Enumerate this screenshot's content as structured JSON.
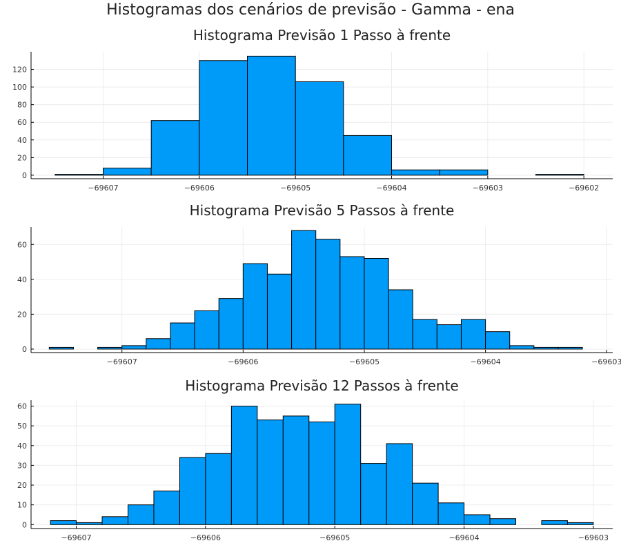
{
  "suptitle": "Histogramas dos cenários de previsão - Gamma - ena",
  "chart_data": [
    {
      "type": "bar",
      "title": "Histograma Previsão 1 Passo à frente",
      "bin_edges": [
        -69607.5,
        -69607.0,
        -69606.5,
        -69606.0,
        -69605.5,
        -69605.0,
        -69604.5,
        -69604.0,
        -69603.5,
        -69603.0,
        -69602.5,
        -69602.0
      ],
      "values": [
        1,
        8,
        62,
        130,
        135,
        106,
        45,
        6,
        6,
        0,
        1
      ],
      "xlim": [
        -69607.75,
        -69601.7
      ],
      "ylim": [
        -4,
        140
      ],
      "xticks": [
        -69607,
        -69606,
        -69605,
        -69604,
        -69603,
        -69602
      ],
      "xtick_labels": [
        "−69607",
        "−69606",
        "−69605",
        "−69604",
        "−69603",
        "−69602"
      ],
      "yticks": [
        0,
        20,
        40,
        60,
        80,
        100,
        120
      ],
      "ytick_labels": [
        "0",
        "20",
        "40",
        "60",
        "80",
        "100",
        "120"
      ],
      "grid": true
    },
    {
      "type": "bar",
      "title": "Histograma Previsão 5 Passos à frente",
      "bin_edges": [
        -69607.6,
        -69607.4,
        -69607.2,
        -69607.0,
        -69606.8,
        -69606.6,
        -69606.4,
        -69606.2,
        -69606.0,
        -69605.8,
        -69605.6,
        -69605.4,
        -69605.2,
        -69605.0,
        -69604.8,
        -69604.6,
        -69604.4,
        -69604.2,
        -69604.0,
        -69603.8,
        -69603.6,
        -69603.4,
        -69603.2
      ],
      "values": [
        1,
        0,
        1,
        2,
        6,
        15,
        22,
        29,
        49,
        43,
        68,
        63,
        53,
        52,
        34,
        17,
        14,
        17,
        10,
        2,
        1,
        1
      ],
      "xlim": [
        -69607.75,
        -69602.95
      ],
      "ylim": [
        -2,
        70
      ],
      "xticks": [
        -69607,
        -69606,
        -69605,
        -69604,
        -69603
      ],
      "xtick_labels": [
        "−69607",
        "−69606",
        "−69605",
        "−69604",
        "−69603"
      ],
      "yticks": [
        0,
        20,
        40,
        60
      ],
      "ytick_labels": [
        "0",
        "20",
        "40",
        "60"
      ],
      "grid": true
    },
    {
      "type": "bar",
      "title": "Histograma Previsão 12 Passos à frente",
      "bin_edges": [
        -69607.2,
        -69607.0,
        -69606.8,
        -69606.6,
        -69606.4,
        -69606.2,
        -69606.0,
        -69605.8,
        -69605.6,
        -69605.4,
        -69605.2,
        -69605.0,
        -69604.8,
        -69604.6,
        -69604.4,
        -69604.2,
        -69604.0,
        -69603.8,
        -69603.6,
        -69603.4,
        -69603.2,
        -69603.0
      ],
      "values": [
        2,
        1,
        4,
        10,
        17,
        34,
        36,
        60,
        53,
        55,
        52,
        61,
        31,
        41,
        21,
        11,
        5,
        3,
        0,
        2,
        1
      ],
      "xlim": [
        -69607.35,
        -69602.85
      ],
      "ylim": [
        -2,
        63
      ],
      "xticks": [
        -69607,
        -69606,
        -69605,
        -69604,
        -69603
      ],
      "xtick_labels": [
        "−69607",
        "−69606",
        "−69605",
        "−69604",
        "−69603"
      ],
      "yticks": [
        0,
        10,
        20,
        30,
        40,
        50,
        60
      ],
      "ytick_labels": [
        "0",
        "10",
        "20",
        "30",
        "40",
        "50",
        "60"
      ],
      "grid": true
    }
  ],
  "colors": {
    "bar_fill": "#009af9",
    "bar_edge": "#000000",
    "grid": "#ececec"
  }
}
